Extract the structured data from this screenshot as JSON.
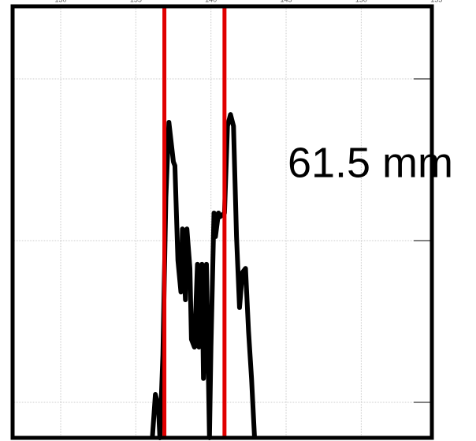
{
  "chart_data": {
    "type": "line",
    "x": [
      136.1,
      136.3,
      136.5,
      136.6,
      136.8,
      137.0,
      137.2,
      137.5,
      137.6,
      137.8,
      138.0,
      138.1,
      138.3,
      138.4,
      138.6,
      138.7,
      138.9,
      139.1,
      139.2,
      139.4,
      139.5,
      139.7,
      139.9,
      140.0,
      140.2,
      140.3,
      140.5,
      140.6,
      140.9,
      141.1,
      141.3,
      141.5,
      141.7,
      141.9,
      142.1,
      142.3,
      142.5,
      142.7,
      142.9
    ],
    "series": [
      {
        "color": "#000000",
        "values": [
          0,
          10.1,
          7.3,
          0,
          19.3,
          56,
          73.4,
          64.2,
          63.3,
          41.3,
          33.9,
          48.6,
          32.1,
          48.6,
          39.4,
          22.9,
          21.1,
          40.4,
          21.1,
          40.4,
          13.8,
          40.4,
          0,
          21.1,
          52.3,
          46.8,
          52.3,
          51.4,
          52.3,
          72.5,
          75.2,
          72.5,
          46.8,
          30.3,
          38.5,
          39.4,
          24.8,
          13.8,
          0
        ]
      }
    ],
    "vlines": [
      136.9,
      140.9
    ],
    "vline_color": "#e00000",
    "annotation": "61.5 mm",
    "xlim": [
      126.8,
      154.7
    ],
    "ylim": [
      0,
      100
    ],
    "xticks": [
      130,
      135,
      140,
      145,
      150,
      155
    ],
    "grid": true
  }
}
